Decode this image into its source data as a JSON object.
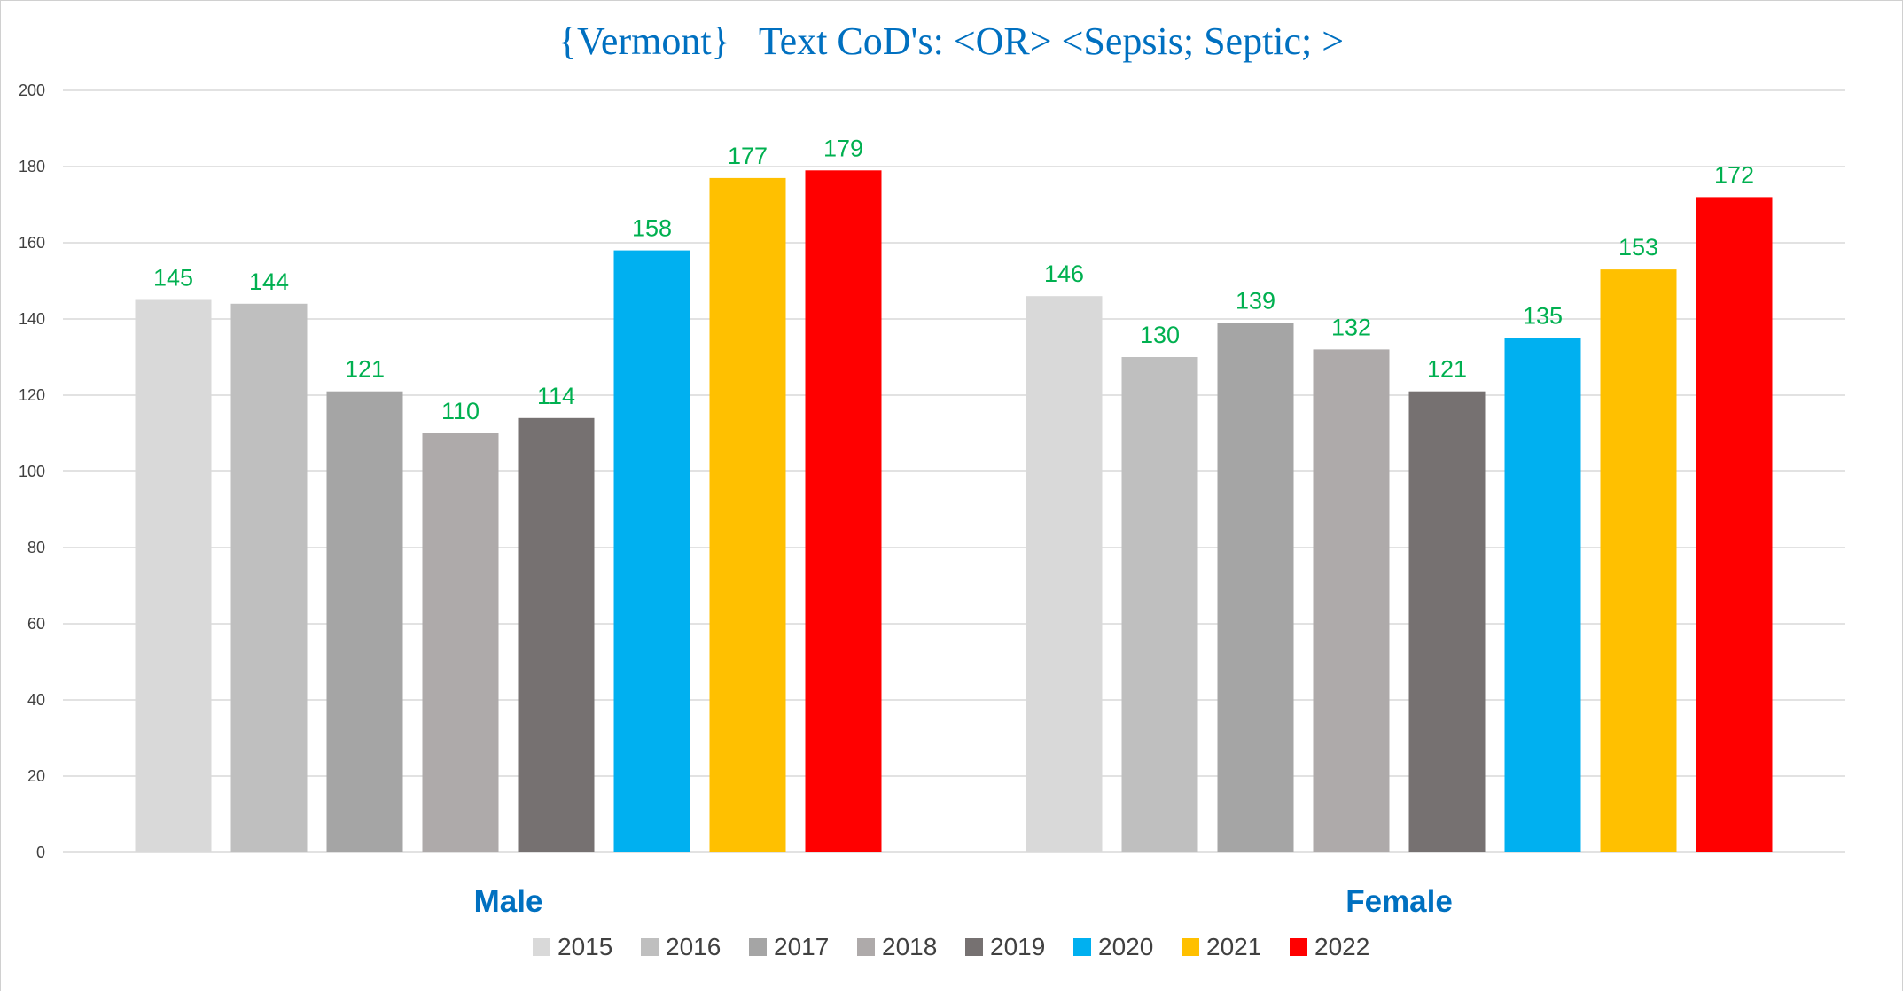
{
  "chart_data": {
    "type": "bar",
    "title": "{Vermont}   Text CoD's: <OR> <Sepsis; Septic; >",
    "categories": [
      "Male",
      "Female"
    ],
    "ylim": [
      0,
      200
    ],
    "yticks": [
      "0",
      "20",
      "40",
      "60",
      "80",
      "100",
      "120",
      "140",
      "160",
      "180",
      "200"
    ],
    "grid": true,
    "legend_position": "bottom",
    "series": [
      {
        "name": "2015",
        "color": "#D9D9D9",
        "values": [
          145,
          146
        ]
      },
      {
        "name": "2016",
        "color": "#BFBFBF",
        "values": [
          144,
          130
        ]
      },
      {
        "name": "2017",
        "color": "#A5A5A5",
        "values": [
          121,
          139
        ]
      },
      {
        "name": "2018",
        "color": "#AEAAAA",
        "values": [
          110,
          132
        ]
      },
      {
        "name": "2019",
        "color": "#767171",
        "values": [
          114,
          121
        ]
      },
      {
        "name": "2020",
        "color": "#00B0F0",
        "values": [
          158,
          135
        ]
      },
      {
        "name": "2021",
        "color": "#FFC000",
        "values": [
          177,
          153
        ]
      },
      {
        "name": "2022",
        "color": "#FF0000",
        "values": [
          179,
          172
        ]
      }
    ],
    "colors": {
      "title": "#0070C0",
      "category_label": "#0070C0",
      "data_label": "#00B050",
      "axis_text": "#404040",
      "gridline": "#D9D9D9"
    }
  }
}
